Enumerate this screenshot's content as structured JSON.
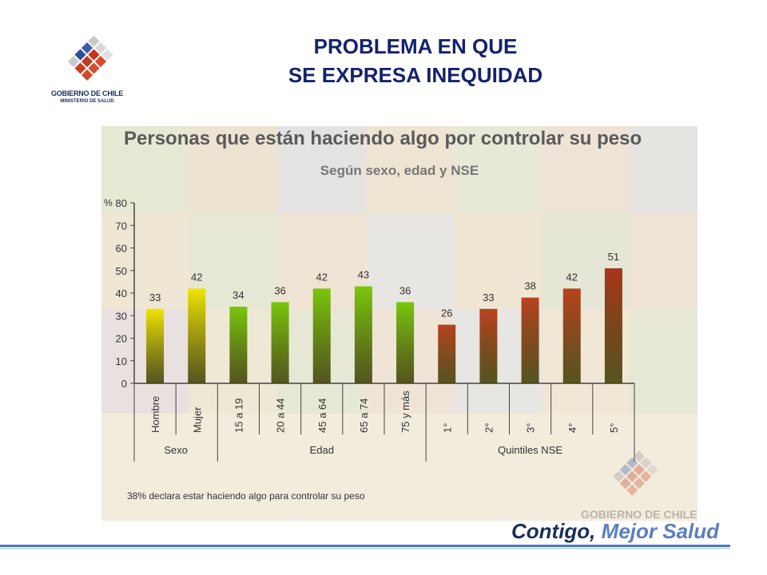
{
  "logo": {
    "line1": "GOBIERNO DE CHILE",
    "line2": "MINISTERIO DE SALUD"
  },
  "slide_title": {
    "line1": "PROBLEMA  EN QUE",
    "line2": "SE EXPRESA INEQUIDAD"
  },
  "chart_data": {
    "type": "bar",
    "title": "Personas que están haciendo algo por controlar su peso",
    "subtitle": "Según sexo, edad y NSE",
    "ylabel": "%",
    "ylim": [
      0,
      80
    ],
    "yticks": [
      0,
      10,
      20,
      30,
      40,
      50,
      60,
      70,
      80
    ],
    "categories": [
      "Hombre",
      "Mujer",
      "15 a 19",
      "20 a 44",
      "45 a 64",
      "65 a 74",
      "75 y más",
      "1°",
      "2°",
      "3°",
      "4°",
      "5°"
    ],
    "values": [
      33,
      42,
      34,
      36,
      42,
      43,
      36,
      26,
      33,
      38,
      42,
      51
    ],
    "groups": [
      {
        "name": "Sexo",
        "categories": [
          "Hombre",
          "Mujer"
        ],
        "color": "#e8e000"
      },
      {
        "name": "Edad",
        "categories": [
          "15 a 19",
          "20 a 44",
          "45 a 64",
          "65 a 74",
          "75 y más"
        ],
        "color": "#7cc400"
      },
      {
        "name": "Quintiles NSE",
        "categories": [
          "1°",
          "2°",
          "3°",
          "4°",
          "5°"
        ],
        "color": "#b84a1c"
      }
    ],
    "bar_colors": [
      "#f0e500",
      "#f0e500",
      "#7ac70c",
      "#7ac70c",
      "#7ac70c",
      "#7ac70c",
      "#7ac70c",
      "#b8431f",
      "#b8431f",
      "#b8431f",
      "#b8431f",
      "#a9361a"
    ],
    "grid": false
  },
  "footnote": "38% declara estar haciendo algo para controlar su peso",
  "watermark": {
    "text": "GOBIERNO DE CHILE"
  },
  "tagline": {
    "part1": "Contigo,",
    "part2": "Mejor Salud"
  }
}
